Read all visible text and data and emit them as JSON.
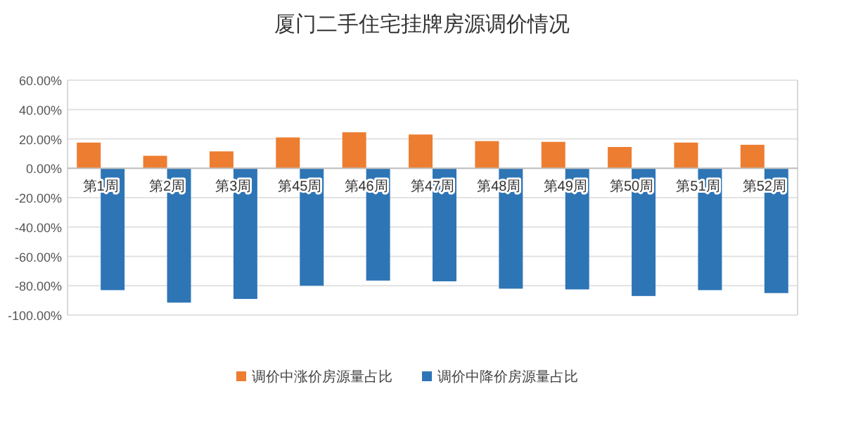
{
  "chart_data": {
    "type": "bar",
    "title": "厦门二手住宅挂牌房源调价情况",
    "categories": [
      "第1周",
      "第2周",
      "第3周",
      "第45周",
      "第46周",
      "第47周",
      "第48周",
      "第49周",
      "第50周",
      "第51周",
      "第52周"
    ],
    "series": [
      {
        "name": "调价中涨价房源量占比",
        "color": "#ed7d31",
        "values": [
          17.5,
          8.5,
          11.5,
          21,
          24.5,
          23,
          18.5,
          18,
          14.5,
          17.5,
          16
        ]
      },
      {
        "name": "调价中降价房源量占比",
        "color": "#2e75b6",
        "values": [
          -83,
          -91.5,
          -89,
          -80,
          -76.5,
          -77,
          -82,
          -82.5,
          -87,
          -83,
          -85
        ]
      }
    ],
    "ylim": [
      -100,
      60
    ],
    "yticks": [
      {
        "value": -100,
        "label": "-100.00%"
      },
      {
        "value": -80,
        "label": "-80.00%"
      },
      {
        "value": -60,
        "label": "-60.00%"
      },
      {
        "value": -40,
        "label": "-40.00%"
      },
      {
        "value": -20,
        "label": "-20.00%"
      },
      {
        "value": 0,
        "label": "0.00%"
      },
      {
        "value": 20,
        "label": "20.00%"
      },
      {
        "value": 40,
        "label": "40.00%"
      },
      {
        "value": 60,
        "label": "60.00%"
      }
    ],
    "grid": "y",
    "legend": "bottom"
  }
}
